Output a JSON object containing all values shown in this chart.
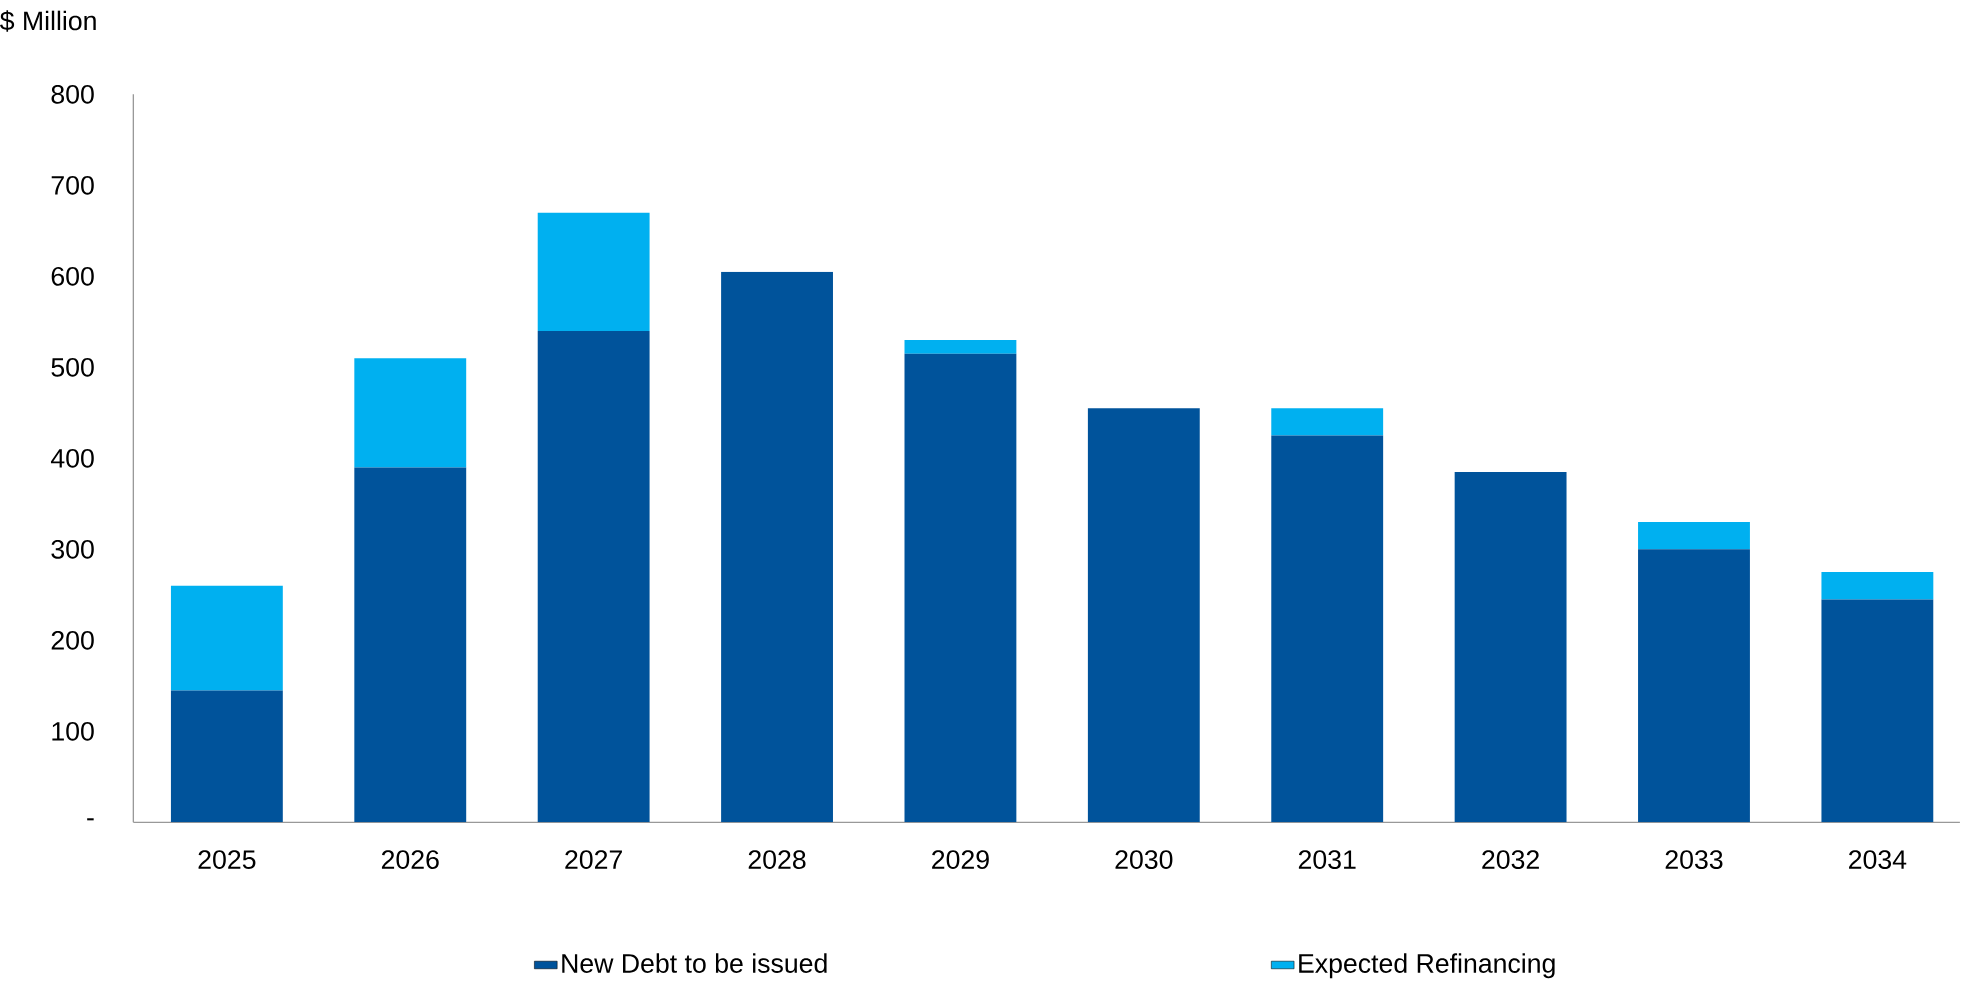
{
  "chart_data": {
    "type": "bar",
    "ylabel": "$ Million",
    "stacked": true,
    "legend": "bottom",
    "categories": [
      "2025",
      "2026",
      "2027",
      "2028",
      "2029",
      "2030",
      "2031",
      "2032",
      "2033",
      "2034"
    ],
    "series": [
      {
        "name": "New Debt to be issued",
        "color": "#00539b",
        "values": [
          145,
          390,
          540,
          605,
          515,
          455,
          425,
          385,
          300,
          245
        ]
      },
      {
        "name": "Expected Refinancing",
        "color": "#00b0f0",
        "values": [
          115,
          120,
          130,
          0,
          15,
          0,
          30,
          0,
          30,
          30
        ]
      }
    ],
    "ylim": [
      0,
      800
    ],
    "yticks": [
      {
        "value": 0,
        "label": "-"
      },
      100,
      200,
      300,
      400,
      500,
      600,
      700,
      800
    ]
  }
}
